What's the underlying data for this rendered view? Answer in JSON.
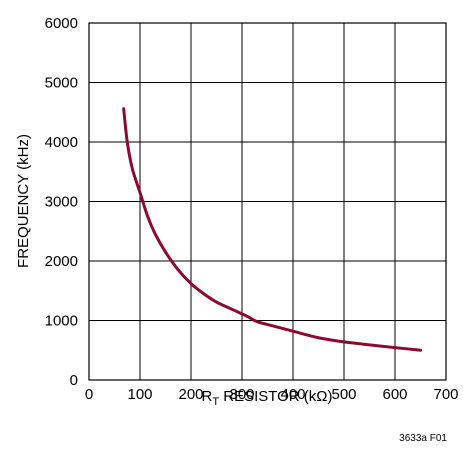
{
  "chart_data": {
    "type": "line",
    "xlabel": "R",
    "xlabel_sub": "T",
    "xlabel_rest": " RESISTOR (kΩ)",
    "ylabel": "FREQUENCY (kHz)",
    "xlim": [
      0,
      700
    ],
    "ylim": [
      0,
      6000
    ],
    "x_ticks": [
      0,
      100,
      200,
      300,
      400,
      500,
      600,
      700
    ],
    "y_ticks": [
      0,
      1000,
      2000,
      3000,
      4000,
      5000,
      6000
    ],
    "grid": true,
    "line_color": "#8b0a2f",
    "series": [
      {
        "x": [
          68,
          75,
          85,
          100,
          115,
          130,
          150,
          175,
          200,
          225,
          250,
          280,
          310,
          330,
          360,
          400,
          450,
          500,
          550,
          600,
          650
        ],
        "y": [
          4560,
          4000,
          3550,
          3150,
          2750,
          2450,
          2150,
          1850,
          1620,
          1450,
          1310,
          1190,
          1070,
          980,
          910,
          820,
          710,
          640,
          590,
          545,
          500
        ]
      }
    ]
  },
  "figure_id": "3633a F01"
}
